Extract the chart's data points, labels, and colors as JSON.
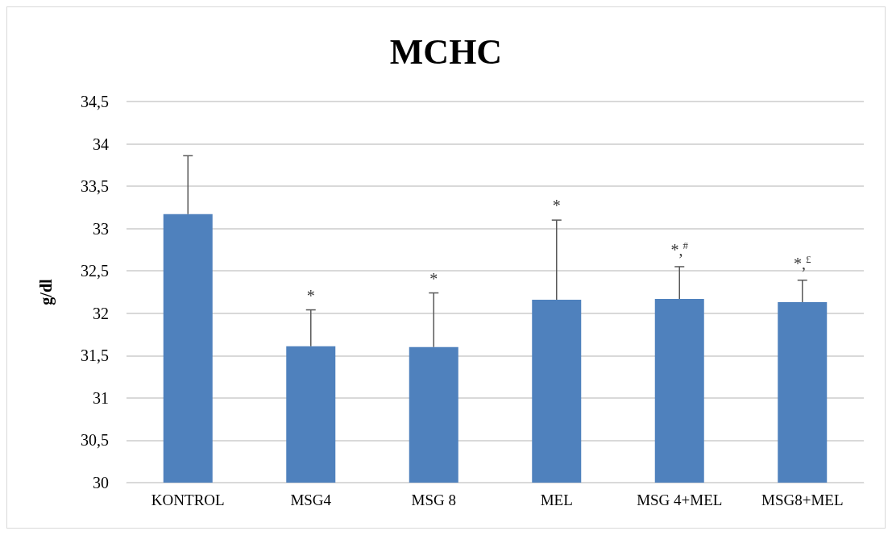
{
  "chart_data": {
    "type": "bar",
    "title": "MCHC",
    "ylabel": "g/dl",
    "categories": [
      "KONTROL",
      "MSG4",
      "MSG 8",
      "MEL",
      "MSG 4+MEL",
      "MSG8+MEL"
    ],
    "values": [
      33.17,
      31.61,
      31.6,
      32.16,
      32.17,
      32.13
    ],
    "errors": [
      [
        33.17,
        33.86
      ],
      [
        31.61,
        32.04
      ],
      [
        31.6,
        32.24
      ],
      [
        32.16,
        33.1
      ],
      [
        32.17,
        32.55
      ],
      [
        32.13,
        32.39
      ]
    ],
    "color": "#4f81bd",
    "ylim": [
      30,
      34.5
    ],
    "yticks": [
      {
        "value": 30,
        "label": "30"
      },
      {
        "value": 30.5,
        "label": "30,5"
      },
      {
        "value": 31,
        "label": "31"
      },
      {
        "value": 31.5,
        "label": "31,5"
      },
      {
        "value": 32,
        "label": "32"
      },
      {
        "value": 32.5,
        "label": "32,5"
      },
      {
        "value": 33,
        "label": "33"
      },
      {
        "value": 33.5,
        "label": "33,5"
      },
      {
        "value": 34,
        "label": "34"
      },
      {
        "value": 34.5,
        "label": "34,5"
      }
    ],
    "grid": "y",
    "annotations": [
      {
        "text": "*",
        "x": "MSG4",
        "y": 32.04
      },
      {
        "text": "*",
        "x": "MSG 8",
        "y": 32.24
      },
      {
        "text": "*",
        "x": "MEL",
        "y": 33.1
      },
      {
        "text": "*,$^{#}$",
        "x": "MSG 4+MEL",
        "y": 32.55
      },
      {
        "text": "*,$^{£}$",
        "x": "MSG8+MEL",
        "y": 32.39
      }
    ]
  }
}
